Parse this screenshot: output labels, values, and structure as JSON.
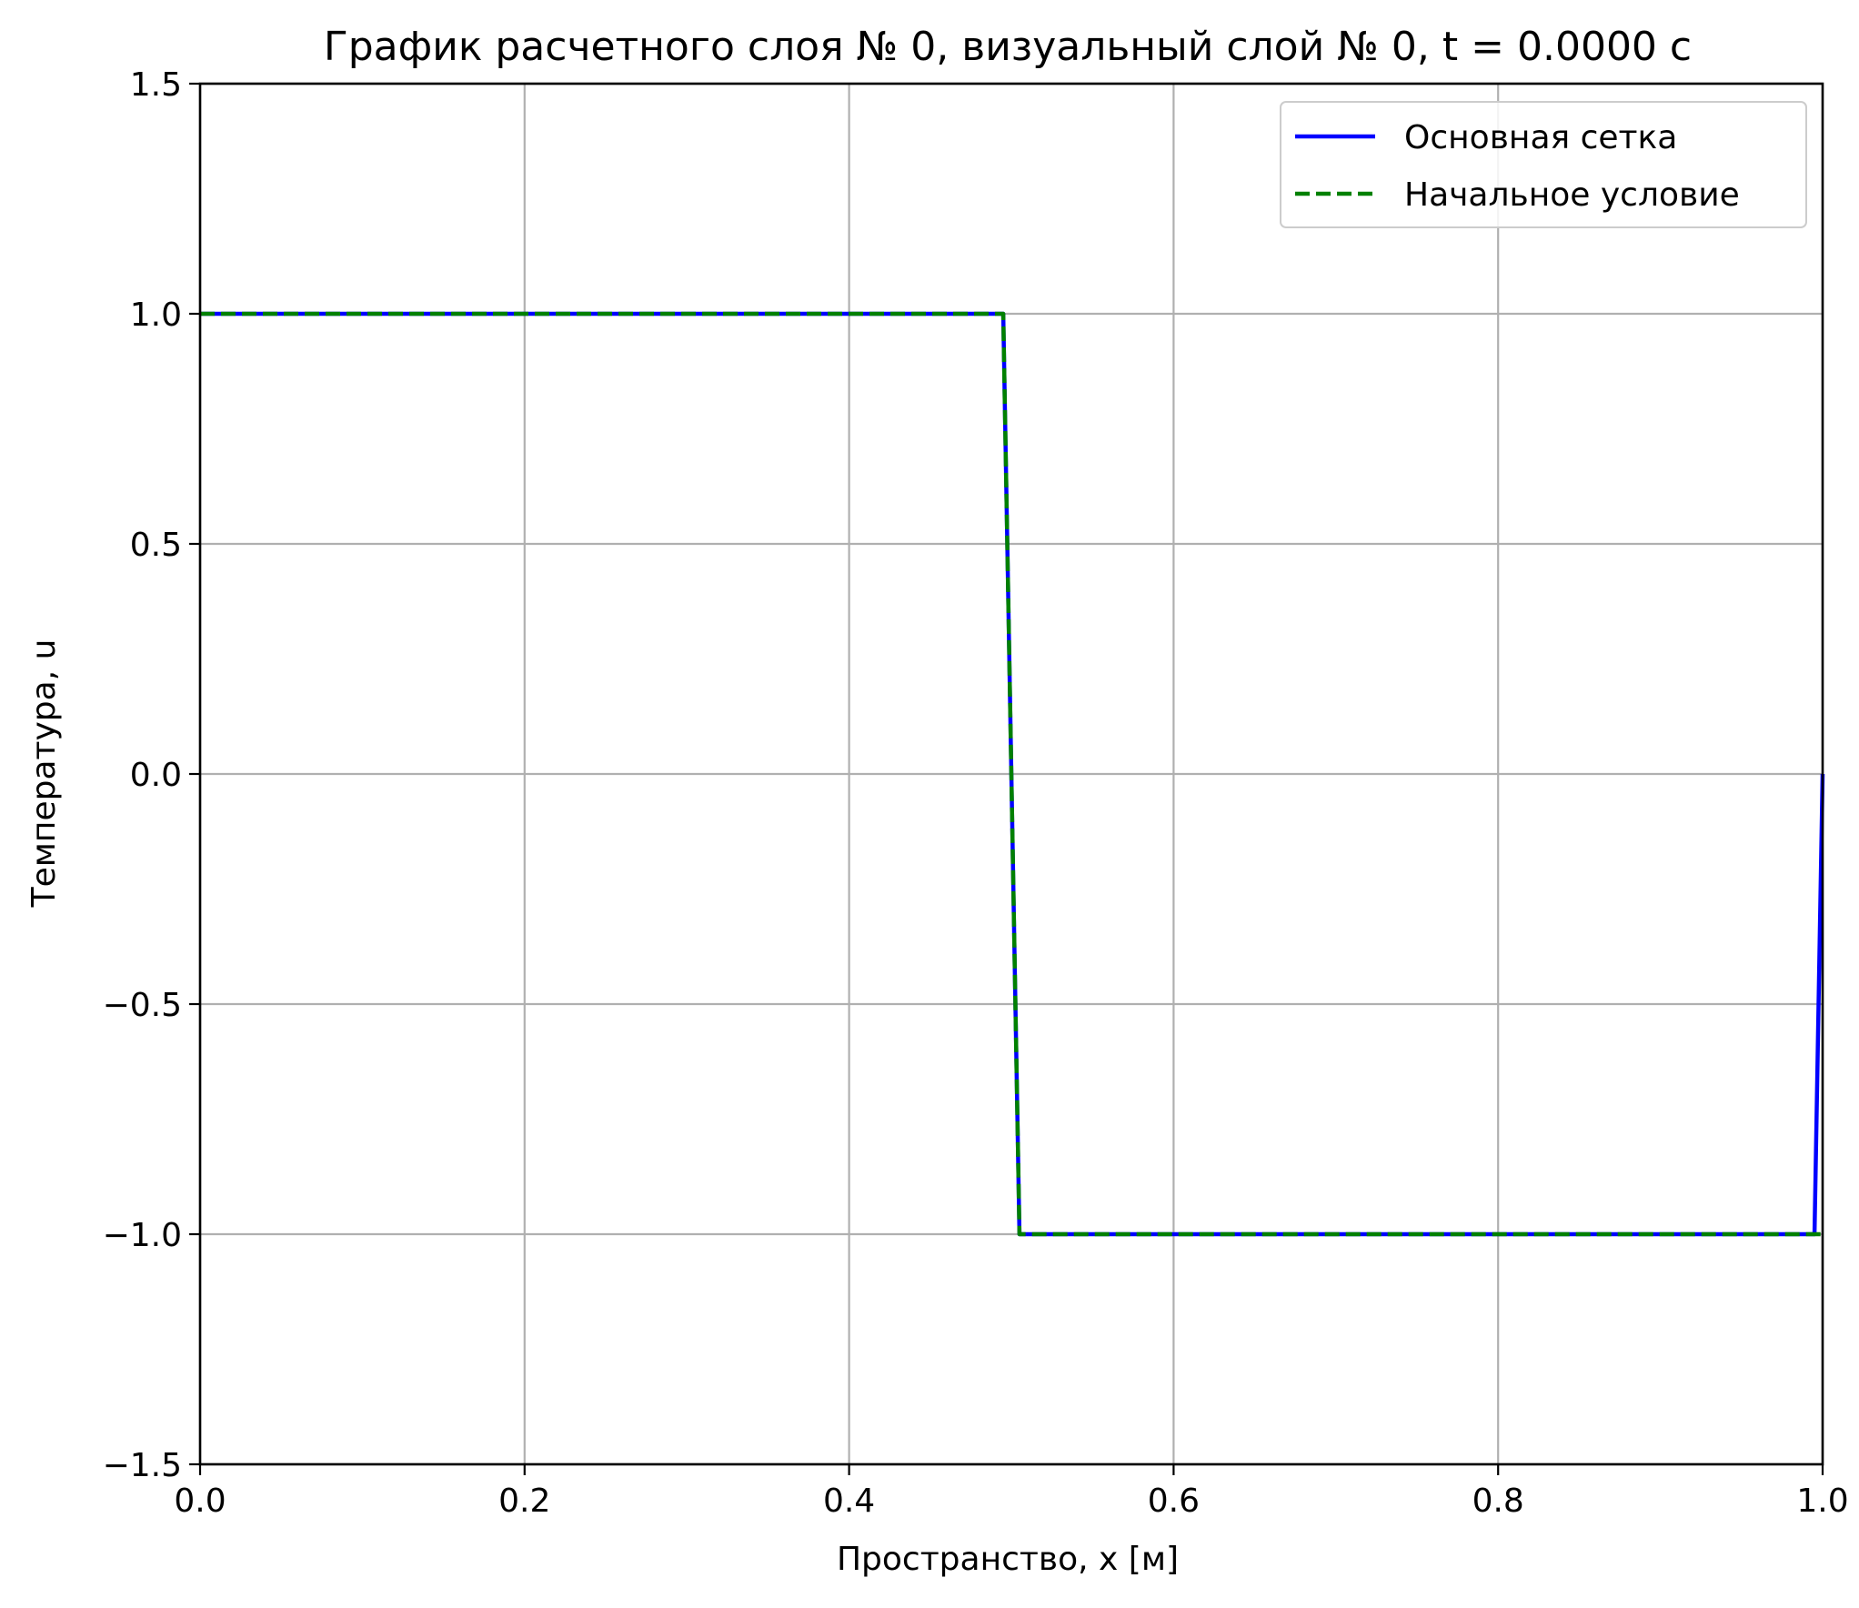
{
  "chart_data": {
    "type": "line",
    "title": "График расчетного слоя № 0, визуальный слой № 0, t = 0.0000 с",
    "xlabel": "Пространство, x [м]",
    "ylabel": "Температура, u",
    "xlim": [
      0.0,
      1.0
    ],
    "ylim": [
      -1.5,
      1.5
    ],
    "x_ticks": [
      0.0,
      0.2,
      0.4,
      0.6,
      0.8,
      1.0
    ],
    "x_tick_labels": [
      "0.0",
      "0.2",
      "0.4",
      "0.6",
      "0.8",
      "1.0"
    ],
    "y_ticks": [
      -1.5,
      -1.0,
      -0.5,
      0.0,
      0.5,
      1.0,
      1.5
    ],
    "y_tick_labels": [
      "−1.5",
      "−1.0",
      "−0.5",
      "0.0",
      "0.5",
      "1.0",
      "1.5"
    ],
    "grid": true,
    "legend_position": "top-right",
    "series": [
      {
        "name": "Основная сетка",
        "color": "#0000ff",
        "style": "solid",
        "x": [
          0.0,
          0.495,
          0.5,
          0.505,
          0.995,
          1.0
        ],
        "y": [
          1.0,
          1.0,
          0.0,
          -1.0,
          -1.0,
          0.0
        ]
      },
      {
        "name": "Начальное условие",
        "color": "#008000",
        "style": "dashed",
        "x": [
          0.0,
          0.495,
          0.5,
          0.505,
          0.995,
          1.0
        ],
        "y": [
          1.0,
          1.0,
          0.0,
          -1.0,
          -1.0,
          -1.0
        ]
      }
    ]
  }
}
